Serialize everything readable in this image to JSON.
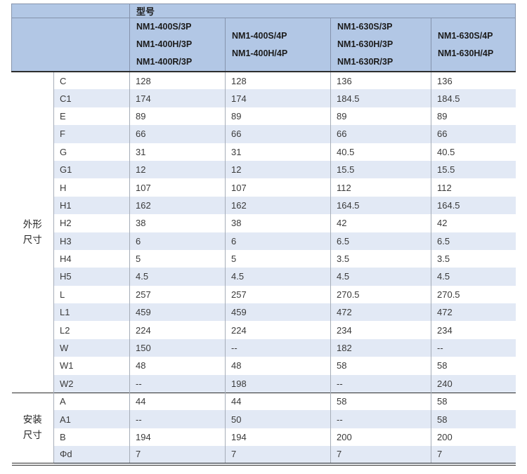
{
  "header": {
    "model_label": "型号",
    "columns": [
      {
        "models": [
          "NM1-400S/3P",
          "NM1-400H/3P",
          "NM1-400R/3P"
        ]
      },
      {
        "models": [
          "NM1-400S/4P",
          "NM1-400H/4P"
        ]
      },
      {
        "models": [
          "NM1-630S/3P",
          "NM1-630H/3P",
          "NM1-630R/3P"
        ]
      },
      {
        "models": [
          "NM1-630S/4P",
          "NM1-630H/4P"
        ]
      }
    ]
  },
  "sections": [
    {
      "label": "外形尺寸",
      "rows": [
        {
          "dim": "C",
          "values": [
            "128",
            "128",
            "136",
            "136"
          ]
        },
        {
          "dim": "C1",
          "values": [
            "174",
            "174",
            "184.5",
            "184.5"
          ]
        },
        {
          "dim": "E",
          "values": [
            "89",
            "89",
            "89",
            "89"
          ]
        },
        {
          "dim": "F",
          "values": [
            "66",
            "66",
            "66",
            "66"
          ]
        },
        {
          "dim": "G",
          "values": [
            "31",
            "31",
            "40.5",
            "40.5"
          ]
        },
        {
          "dim": "G1",
          "values": [
            "12",
            "12",
            "15.5",
            "15.5"
          ]
        },
        {
          "dim": "H",
          "values": [
            "107",
            "107",
            "112",
            "112"
          ]
        },
        {
          "dim": "H1",
          "values": [
            "162",
            "162",
            "164.5",
            "164.5"
          ]
        },
        {
          "dim": "H2",
          "values": [
            "38",
            "38",
            "42",
            "42"
          ]
        },
        {
          "dim": "H3",
          "values": [
            "6",
            "6",
            "6.5",
            "6.5"
          ]
        },
        {
          "dim": "H4",
          "values": [
            "5",
            "5",
            "3.5",
            "3.5"
          ]
        },
        {
          "dim": "H5",
          "values": [
            "4.5",
            "4.5",
            "4.5",
            "4.5"
          ]
        },
        {
          "dim": "L",
          "values": [
            "257",
            "257",
            "270.5",
            "270.5"
          ]
        },
        {
          "dim": "L1",
          "values": [
            "459",
            "459",
            "472",
            "472"
          ]
        },
        {
          "dim": "L2",
          "values": [
            "224",
            "224",
            "234",
            "234"
          ]
        },
        {
          "dim": "W",
          "values": [
            "150",
            "--",
            "182",
            "--"
          ]
        },
        {
          "dim": "W1",
          "values": [
            "48",
            "48",
            "58",
            "58"
          ]
        },
        {
          "dim": "W2",
          "values": [
            "--",
            "198",
            "--",
            "240"
          ]
        }
      ]
    },
    {
      "label": "安装尺寸",
      "rows": [
        {
          "dim": "A",
          "values": [
            "44",
            "44",
            "58",
            "58"
          ]
        },
        {
          "dim": "A1",
          "values": [
            "--",
            "50",
            "--",
            "58"
          ]
        },
        {
          "dim": "B",
          "values": [
            "194",
            "194",
            "200",
            "200"
          ]
        },
        {
          "dim": "Φd",
          "values": [
            "7",
            "7",
            "7",
            "7"
          ]
        }
      ]
    }
  ],
  "colors": {
    "header_bg": "#b2c7e5",
    "header_border": "#8593ac",
    "stripe_bg": "#e2e9f5",
    "row_bg": "#ffffff",
    "border_light": "#a6adb8",
    "border_dark": "#2d2d2d",
    "text": "#3a3a3a",
    "header_text": "#1b1b1b"
  }
}
